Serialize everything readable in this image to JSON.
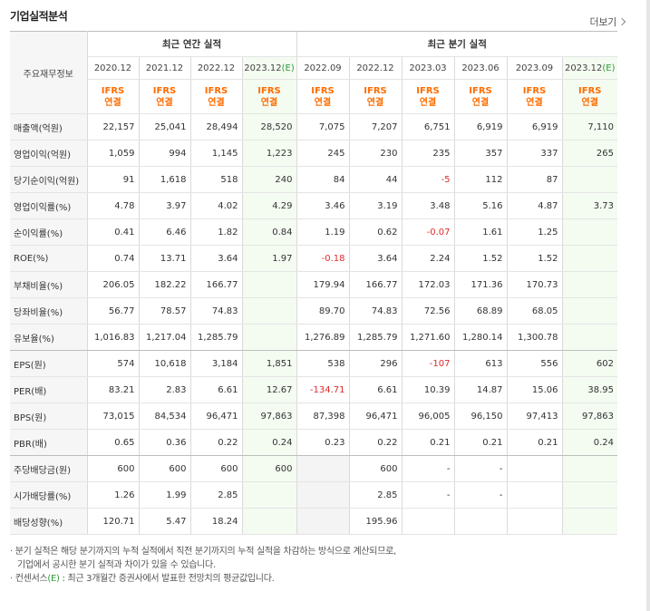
{
  "title": "기업실적분석",
  "more_label": "더보기",
  "header": {
    "row_label": "주요재무정보",
    "annual_label": "최근 연간 실적",
    "quarter_label": "최근 분기 실적",
    "periods": [
      "2020.12",
      "2021.12",
      "2022.12",
      "2023.12",
      "2022.09",
      "2022.12",
      "2023.03",
      "2023.06",
      "2023.09",
      "2023.12"
    ],
    "estimate_suffix": "(E)",
    "ifrs_line1": "IFRS",
    "ifrs_line2": "연결"
  },
  "rows": [
    {
      "label": "매출액(억원)",
      "values": [
        "22,157",
        "25,041",
        "28,494",
        "28,520",
        "7,075",
        "7,207",
        "6,751",
        "6,919",
        "6,919",
        "7,110"
      ]
    },
    {
      "label": "영업이익(억원)",
      "values": [
        "1,059",
        "994",
        "1,145",
        "1,223",
        "245",
        "230",
        "235",
        "357",
        "337",
        "265"
      ]
    },
    {
      "label": "당기순이익(억원)",
      "values": [
        "91",
        "1,618",
        "518",
        "240",
        "84",
        "44",
        "-5",
        "112",
        "87",
        ""
      ]
    },
    {
      "label": "영업이익률(%)",
      "values": [
        "4.78",
        "3.97",
        "4.02",
        "4.29",
        "3.46",
        "3.19",
        "3.48",
        "5.16",
        "4.87",
        "3.73"
      ]
    },
    {
      "label": "순이익률(%)",
      "values": [
        "0.41",
        "6.46",
        "1.82",
        "0.84",
        "1.19",
        "0.62",
        "-0.07",
        "1.61",
        "1.25",
        ""
      ]
    },
    {
      "label": "ROE(%)",
      "values": [
        "0.74",
        "13.71",
        "3.64",
        "1.97",
        "-0.18",
        "3.64",
        "2.24",
        "1.52",
        "1.52",
        ""
      ]
    },
    {
      "label": "부채비율(%)",
      "values": [
        "206.05",
        "182.22",
        "166.77",
        "",
        "179.94",
        "166.77",
        "172.03",
        "171.36",
        "170.73",
        ""
      ]
    },
    {
      "label": "당좌비율(%)",
      "values": [
        "56.77",
        "78.57",
        "74.83",
        "",
        "89.70",
        "74.83",
        "72.56",
        "68.89",
        "68.05",
        ""
      ]
    },
    {
      "label": "유보율(%)",
      "values": [
        "1,016.83",
        "1,217.04",
        "1,285.79",
        "",
        "1,276.89",
        "1,285.79",
        "1,271.60",
        "1,280.14",
        "1,300.78",
        ""
      ]
    },
    {
      "label": "EPS(원)",
      "values": [
        "574",
        "10,618",
        "3,184",
        "1,851",
        "538",
        "296",
        "-107",
        "613",
        "556",
        "602"
      ]
    },
    {
      "label": "PER(배)",
      "values": [
        "83.21",
        "2.83",
        "6.61",
        "12.67",
        "-134.71",
        "6.61",
        "10.39",
        "14.87",
        "15.06",
        "38.95"
      ]
    },
    {
      "label": "BPS(원)",
      "values": [
        "73,015",
        "84,534",
        "96,471",
        "97,863",
        "87,398",
        "96,471",
        "96,005",
        "96,150",
        "97,413",
        "97,863"
      ]
    },
    {
      "label": "PBR(배)",
      "values": [
        "0.65",
        "0.36",
        "0.22",
        "0.24",
        "0.23",
        "0.22",
        "0.21",
        "0.21",
        "0.21",
        "0.24"
      ]
    },
    {
      "label": "주당배당금(원)",
      "values": [
        "600",
        "600",
        "600",
        "600",
        "",
        "600",
        "-",
        "-",
        "",
        ""
      ]
    },
    {
      "label": "시가배당률(%)",
      "values": [
        "1.26",
        "1.99",
        "2.85",
        "",
        "",
        "2.85",
        "-",
        "-",
        "",
        ""
      ]
    },
    {
      "label": "배당성향(%)",
      "values": [
        "120.71",
        "5.47",
        "18.24",
        "",
        "",
        "195.96",
        "",
        "",
        "",
        ""
      ]
    }
  ],
  "notes": {
    "line1": "분기 실적은 해당 분기까지의 누적 실적에서 직전 분기까지의 누적 실적을 차감하는 방식으로 계산되므로,",
    "line2": "기업에서 공시한 분기 실적과 차이가 있을 수 있습니다.",
    "line3_prefix": "컨센서스",
    "line3_e": "(E)",
    "line3_rest": ": 최근 3개월간 증권사에서 발표한 전망치의 평균값입니다."
  }
}
